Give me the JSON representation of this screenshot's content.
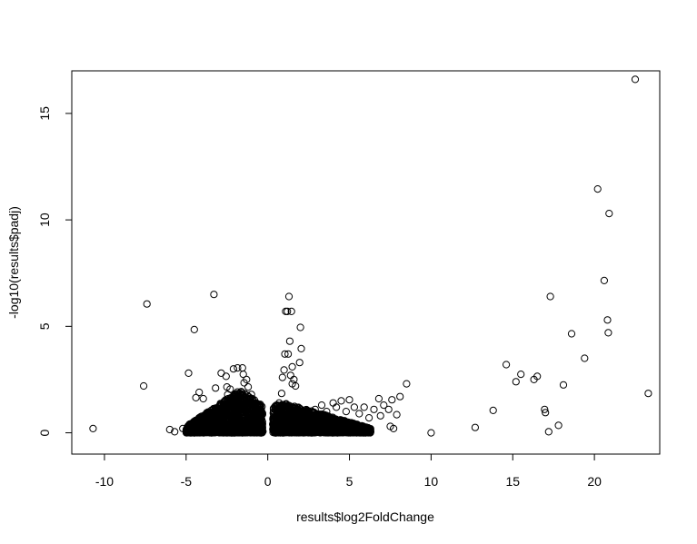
{
  "chart_data": {
    "type": "scatter",
    "title": "",
    "xlabel": "results$log2FoldChange",
    "ylabel": "-log10(results$padj)",
    "xlim": [
      -12,
      24
    ],
    "ylim": [
      -1,
      17
    ],
    "xticks": [
      -10,
      -5,
      0,
      5,
      10,
      15,
      20
    ],
    "yticks": [
      0,
      5,
      10,
      15
    ],
    "xtick_labels": [
      "-10",
      "-5",
      "0",
      "5",
      "10",
      "15",
      "20"
    ],
    "ytick_labels": [
      "0",
      "5",
      "10",
      "15"
    ],
    "grid": false,
    "marker": "open-circle",
    "colors": {
      "points": "#000000",
      "frame": "#000000",
      "background": "#ffffff"
    },
    "points": [
      {
        "x": -10.7,
        "y": 0.2
      },
      {
        "x": -7.6,
        "y": 2.2
      },
      {
        "x": -7.4,
        "y": 6.05
      },
      {
        "x": -6.0,
        "y": 0.15
      },
      {
        "x": -5.7,
        "y": 0.05
      },
      {
        "x": -5.2,
        "y": 0.2
      },
      {
        "x": -4.85,
        "y": 2.8
      },
      {
        "x": -4.5,
        "y": 4.85
      },
      {
        "x": -4.4,
        "y": 1.65
      },
      {
        "x": -4.2,
        "y": 1.9
      },
      {
        "x": -3.95,
        "y": 1.6
      },
      {
        "x": -3.3,
        "y": 6.5
      },
      {
        "x": -3.2,
        "y": 2.1
      },
      {
        "x": -2.85,
        "y": 2.8
      },
      {
        "x": -2.55,
        "y": 2.65
      },
      {
        "x": -2.5,
        "y": 2.15
      },
      {
        "x": -2.45,
        "y": 1.8
      },
      {
        "x": -2.3,
        "y": 2.05
      },
      {
        "x": -2.1,
        "y": 3.0
      },
      {
        "x": -1.85,
        "y": 3.05
      },
      {
        "x": -1.55,
        "y": 3.05
      },
      {
        "x": -1.5,
        "y": 2.75
      },
      {
        "x": -1.45,
        "y": 2.35
      },
      {
        "x": -1.3,
        "y": 2.5
      },
      {
        "x": -1.2,
        "y": 2.15
      },
      {
        "x": -1.0,
        "y": 1.8
      },
      {
        "x": -0.8,
        "y": 1.3
      },
      {
        "x": -0.6,
        "y": 0.9
      },
      {
        "x": -0.4,
        "y": 0.5
      },
      {
        "x": 0.4,
        "y": 0.6
      },
      {
        "x": 0.55,
        "y": 1.0
      },
      {
        "x": 0.7,
        "y": 1.4
      },
      {
        "x": 0.85,
        "y": 1.85
      },
      {
        "x": 0.9,
        "y": 2.6
      },
      {
        "x": 1.0,
        "y": 2.95
      },
      {
        "x": 1.05,
        "y": 3.7
      },
      {
        "x": 1.1,
        "y": 5.7
      },
      {
        "x": 1.2,
        "y": 5.7
      },
      {
        "x": 1.3,
        "y": 6.4
      },
      {
        "x": 1.45,
        "y": 5.7
      },
      {
        "x": 1.35,
        "y": 4.3
      },
      {
        "x": 1.25,
        "y": 3.7
      },
      {
        "x": 1.5,
        "y": 3.1
      },
      {
        "x": 1.4,
        "y": 2.7
      },
      {
        "x": 1.6,
        "y": 2.5
      },
      {
        "x": 1.7,
        "y": 2.2
      },
      {
        "x": 1.5,
        "y": 2.3
      },
      {
        "x": 1.95,
        "y": 3.3
      },
      {
        "x": 2.05,
        "y": 3.95
      },
      {
        "x": 2.0,
        "y": 4.95
      },
      {
        "x": 2.3,
        "y": 1.0
      },
      {
        "x": 2.6,
        "y": 0.8
      },
      {
        "x": 2.9,
        "y": 1.1
      },
      {
        "x": 3.3,
        "y": 1.3
      },
      {
        "x": 3.6,
        "y": 1.0
      },
      {
        "x": 4.0,
        "y": 1.4
      },
      {
        "x": 4.2,
        "y": 1.2
      },
      {
        "x": 4.5,
        "y": 1.5
      },
      {
        "x": 4.8,
        "y": 1.0
      },
      {
        "x": 5.0,
        "y": 1.55
      },
      {
        "x": 5.3,
        "y": 1.2
      },
      {
        "x": 5.6,
        "y": 0.9
      },
      {
        "x": 5.9,
        "y": 1.2
      },
      {
        "x": 6.2,
        "y": 0.7
      },
      {
        "x": 6.5,
        "y": 1.1
      },
      {
        "x": 6.8,
        "y": 1.6
      },
      {
        "x": 6.9,
        "y": 0.8
      },
      {
        "x": 7.1,
        "y": 1.3
      },
      {
        "x": 7.4,
        "y": 1.1
      },
      {
        "x": 7.6,
        "y": 1.55
      },
      {
        "x": 7.5,
        "y": 0.3
      },
      {
        "x": 7.7,
        "y": 0.2
      },
      {
        "x": 7.9,
        "y": 0.85
      },
      {
        "x": 8.1,
        "y": 1.7
      },
      {
        "x": 8.5,
        "y": 2.3
      },
      {
        "x": 6.0,
        "y": 0.1
      },
      {
        "x": 6.3,
        "y": 0.05
      },
      {
        "x": 10.0,
        "y": 0.0
      },
      {
        "x": 12.7,
        "y": 0.25
      },
      {
        "x": 13.8,
        "y": 1.05
      },
      {
        "x": 14.6,
        "y": 3.2
      },
      {
        "x": 15.2,
        "y": 2.4
      },
      {
        "x": 15.5,
        "y": 2.75
      },
      {
        "x": 16.3,
        "y": 2.5
      },
      {
        "x": 16.5,
        "y": 2.65
      },
      {
        "x": 16.95,
        "y": 1.1
      },
      {
        "x": 17.0,
        "y": 0.95
      },
      {
        "x": 17.2,
        "y": 0.05
      },
      {
        "x": 17.3,
        "y": 6.4
      },
      {
        "x": 17.8,
        "y": 0.35
      },
      {
        "x": 18.1,
        "y": 2.25
      },
      {
        "x": 18.6,
        "y": 4.65
      },
      {
        "x": 19.4,
        "y": 3.5
      },
      {
        "x": 20.2,
        "y": 11.45
      },
      {
        "x": 20.6,
        "y": 7.15
      },
      {
        "x": 20.8,
        "y": 5.3
      },
      {
        "x": 20.85,
        "y": 4.7
      },
      {
        "x": 20.9,
        "y": 10.3
      },
      {
        "x": 22.5,
        "y": 16.6
      },
      {
        "x": 23.3,
        "y": 1.85
      }
    ],
    "dense_clusters": [
      {
        "x_range": [
          -5.0,
          -0.3
        ],
        "y_peak_at_x": -1.7,
        "y_max": 2.0,
        "count": 1600
      },
      {
        "x_range": [
          0.3,
          6.3
        ],
        "y_peak_at_x": 1.0,
        "y_max": 1.4,
        "count": 1600
      }
    ]
  }
}
